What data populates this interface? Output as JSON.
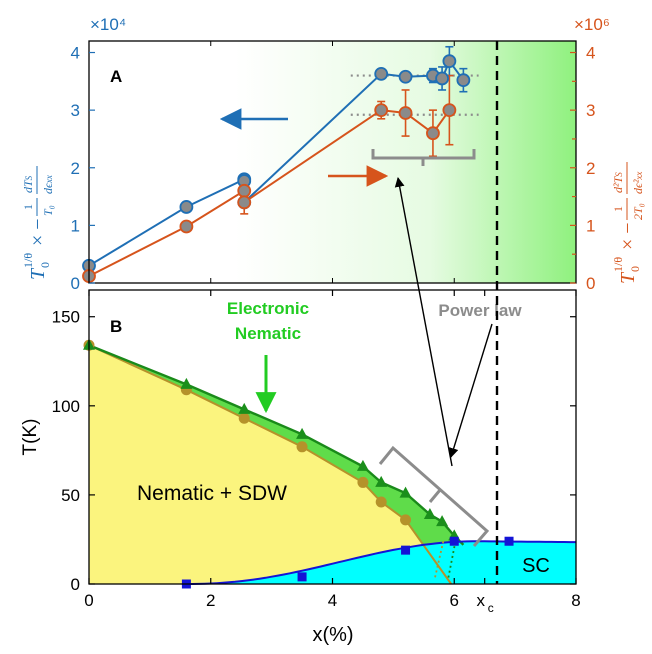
{
  "colors": {
    "blue": "#1f6fb5",
    "orange": "#d6541c",
    "grey_marker": "#8a8a8a",
    "tan": "#b5922a",
    "green_fill": "#5fdc4a",
    "green_line": "#1a8a1a",
    "green_marker": "#1b8f1b",
    "yellow": "#fbf47e",
    "cyan": "#00ffff",
    "sc_blue": "#1414d6",
    "annotation_grey": "#8c8c8c",
    "electronic_nematic": "#22cc22"
  },
  "chart_data": [
    {
      "panel": "A",
      "type": "scatter",
      "panel_label": "A",
      "xlim": [
        0,
        8
      ],
      "ylim_left": [
        0,
        4.2
      ],
      "ylim_right": [
        0,
        4.2
      ],
      "left_exponent": "×10⁴",
      "right_exponent": "×10⁶",
      "ylabel_left": "T₀^{1/θ} × −(1/T₀) dT_S/dε_xx",
      "ylabel_right": "T₀^{1/θ} × −(1/2T₀) d²T_S/dε²_xx",
      "yticks_left": [
        "0",
        "1",
        "2",
        "3",
        "4"
      ],
      "yticks_right": [
        "0",
        "1",
        "2",
        "3",
        "4"
      ],
      "series": [
        {
          "axis": "left",
          "color": "#1f6fb5",
          "x": [
            0,
            1.6,
            2.55,
            2.55,
            2.55,
            4.8,
            5.2,
            5.65,
            5.8,
            5.92,
            6.15
          ],
          "y": [
            0.3,
            1.32,
            1.8,
            1.77,
            1.4,
            3.63,
            3.58,
            3.6,
            3.55,
            3.85,
            3.52
          ],
          "err": [
            0,
            0,
            0,
            0,
            0,
            0,
            0,
            0.12,
            0.2,
            0.25,
            0.2
          ]
        },
        {
          "axis": "right",
          "color": "#d6541c",
          "x": [
            0,
            1.6,
            2.55,
            2.55,
            4.8,
            5.2,
            5.65,
            5.92
          ],
          "y": [
            0.12,
            0.98,
            1.6,
            1.4,
            3.0,
            2.95,
            2.6,
            3.0
          ],
          "err": [
            0,
            0,
            0,
            0.2,
            0.15,
            0.4,
            0.4,
            0.6
          ]
        }
      ],
      "reference_lines": [
        {
          "axis": "left",
          "y": 3.6,
          "x_range": [
            4.3,
            6.4
          ]
        },
        {
          "axis": "left",
          "y": 2.92,
          "x_range": [
            4.3,
            6.4
          ]
        }
      ],
      "annotations": {
        "xc_value": 6.5
      }
    },
    {
      "panel": "B",
      "type": "area",
      "panel_label": "B",
      "xlabel": "x(%)",
      "ylabel": "T(K)",
      "xlim": [
        0,
        8
      ],
      "ylim": [
        0,
        165
      ],
      "xticks": [
        "0",
        "2",
        "4",
        "6",
        "x",
        "8"
      ],
      "xtick_sub": "c",
      "yticks": [
        "0",
        "50",
        "100",
        "150"
      ],
      "electronic_nematic_TS": {
        "x": [
          0,
          1.6,
          2.55,
          3.5,
          4.5,
          4.8,
          5.2,
          5.6,
          5.8,
          6.0
        ],
        "y": [
          134,
          112,
          98,
          84,
          66,
          57,
          51,
          39,
          35,
          27
        ]
      },
      "structural_TN": {
        "x": [
          0,
          1.6,
          2.55,
          3.5,
          4.5,
          4.8,
          5.2
        ],
        "y": [
          134,
          109,
          93,
          77,
          57,
          46,
          36
        ]
      },
      "sc_Tc": {
        "x": [
          1.6,
          3.5,
          5.2,
          6.0,
          6.9
        ],
        "y": [
          0,
          4,
          19,
          24,
          24
        ]
      },
      "labels": {
        "nematic_sdw": "Nematic + SDW",
        "sc": "SC",
        "electronic": "Electronic",
        "nematic": "Nematic",
        "power_law": "Power law"
      }
    }
  ]
}
